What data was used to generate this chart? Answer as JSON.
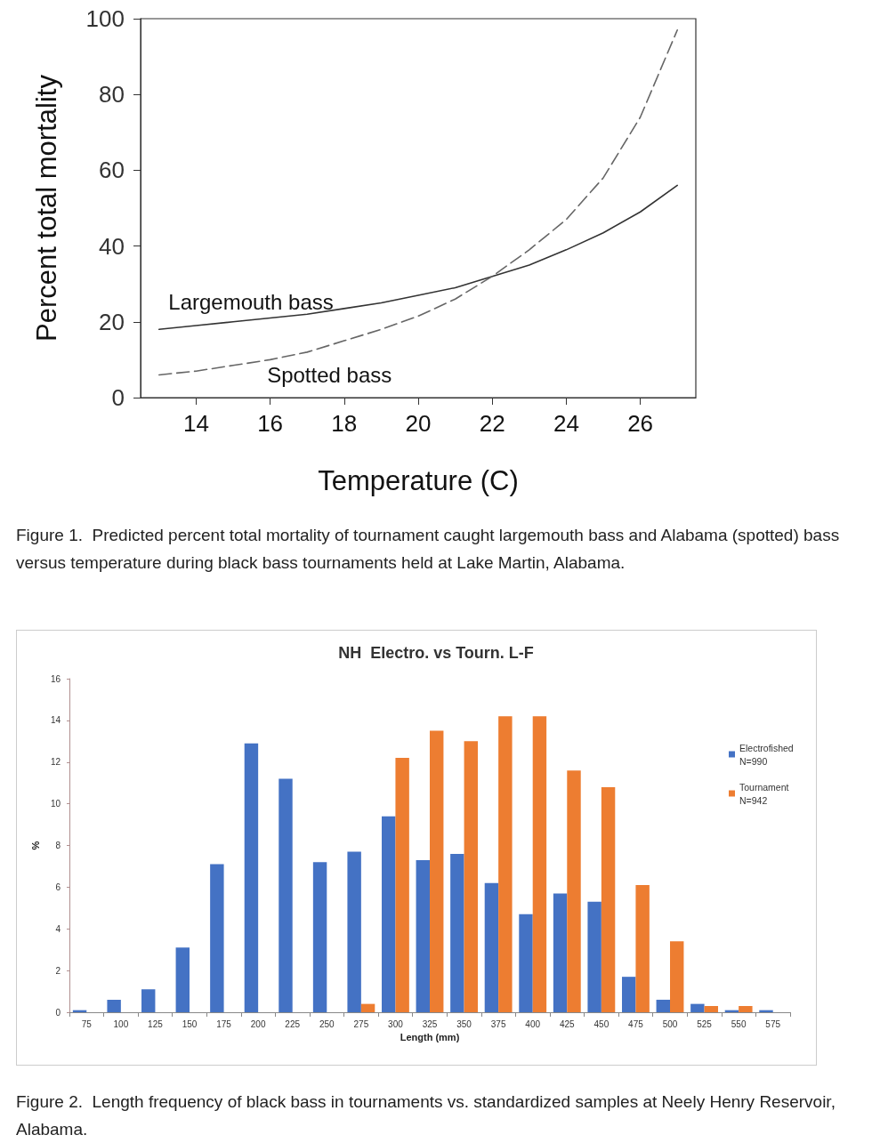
{
  "chart_data": [
    {
      "type": "line",
      "xlabel": "Temperature (C)",
      "ylabel": "Percent total mortality",
      "x": [
        13,
        14,
        15,
        16,
        17,
        18,
        19,
        20,
        21,
        22,
        23,
        24,
        25,
        26,
        27
      ],
      "xlim": [
        12.5,
        27.5
      ],
      "xticks": [
        14,
        16,
        18,
        20,
        22,
        24,
        26
      ],
      "ylim": [
        0,
        100
      ],
      "yticks": [
        0,
        20,
        40,
        60,
        80,
        100
      ],
      "marker": "none",
      "series": [
        {
          "name": "Largemouth bass",
          "color": "#333333",
          "line_style": "solid",
          "values": [
            18,
            19,
            20,
            21,
            22,
            23.5,
            25,
            27,
            29,
            32,
            35,
            39,
            43.5,
            49,
            56
          ]
        },
        {
          "name": "Spotted bass",
          "color": "#666666",
          "line_style": "dashed",
          "values": [
            6,
            7,
            8.5,
            10,
            12,
            15,
            18,
            21.5,
            26,
            32,
            39,
            47,
            58,
            74,
            97
          ]
        }
      ],
      "annotations": [
        "Figure 1.  Predicted percent total mortality of tournament caught largemouth bass and Alabama (spotted) bass versus temperature during black bass tournaments held at Lake Martin, Alabama."
      ]
    },
    {
      "type": "bar",
      "title": "NH  Electro. vs Tourn. L-F",
      "xlabel": "Length (mm)",
      "ylabel": "%",
      "categories": [
        "75",
        "100",
        "125",
        "150",
        "175",
        "200",
        "225",
        "250",
        "275",
        "300",
        "325",
        "350",
        "375",
        "400",
        "425",
        "450",
        "475",
        "500",
        "525",
        "550",
        "575"
      ],
      "ylim": [
        0,
        16
      ],
      "yticks": [
        0,
        2,
        4,
        6,
        8,
        10,
        12,
        14,
        16
      ],
      "legend": "top right",
      "series": [
        {
          "name": "Electrofished N=990",
          "color": "#4472c4",
          "values": [
            0.1,
            0.6,
            1.1,
            3.1,
            7.1,
            12.9,
            11.2,
            7.2,
            7.7,
            9.4,
            7.3,
            7.6,
            6.2,
            4.7,
            5.7,
            5.3,
            1.7,
            0.6,
            0.4,
            0.1,
            0.1
          ]
        },
        {
          "name": "Tournament N=942",
          "color": "#ed7d31",
          "values": [
            0,
            0,
            0,
            0,
            0,
            0,
            0,
            0,
            0.4,
            12.2,
            13.5,
            13,
            14.2,
            14.2,
            11.6,
            10.8,
            6.1,
            3.4,
            0.3,
            0.3,
            0
          ]
        }
      ],
      "annotations": [
        "Figure 2.  Length frequency of black bass in tournaments vs. standardized samples at Neely Henry Reservoir, Alabama."
      ]
    }
  ]
}
